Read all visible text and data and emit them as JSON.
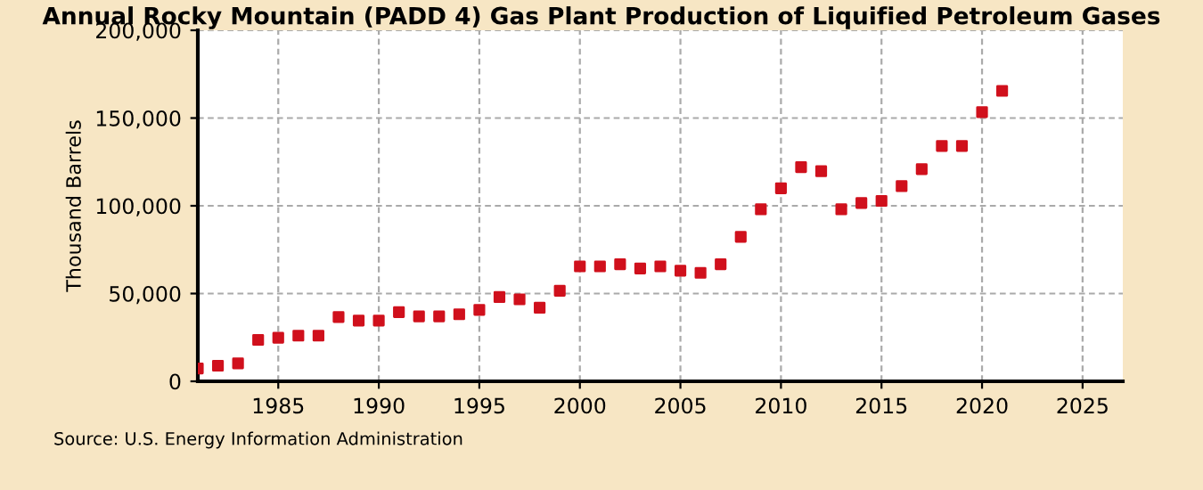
{
  "chart_data": {
    "type": "scatter",
    "title": "Annual Rocky Mountain (PADD 4) Gas Plant Production of Liquified Petroleum Gases",
    "ylabel": "Thousand Barrels",
    "x": [
      1981,
      1982,
      1983,
      1984,
      1985,
      1986,
      1987,
      1988,
      1989,
      1990,
      1991,
      1992,
      1993,
      1994,
      1995,
      1996,
      1997,
      1998,
      1999,
      2000,
      2001,
      2002,
      2003,
      2004,
      2005,
      2006,
      2007,
      2008,
      2009,
      2010,
      2011,
      2012,
      2013,
      2014,
      2015,
      2016,
      2017,
      2018,
      2019,
      2020,
      2021
    ],
    "series": [
      {
        "color": "#d0101c",
        "values": [
          7300,
          8900,
          10200,
          23600,
          24800,
          26000,
          26000,
          36600,
          34600,
          34600,
          39400,
          37000,
          37000,
          38200,
          40700,
          48000,
          46700,
          41900,
          51600,
          65500,
          65500,
          66700,
          64300,
          65500,
          63000,
          61800,
          66700,
          82300,
          98000,
          110000,
          122000,
          119700,
          98000,
          101600,
          102800,
          111200,
          120900,
          134100,
          134100,
          153400,
          165500
        ]
      }
    ],
    "xlim": [
      1981,
      2027
    ],
    "xticks": [
      1985,
      1990,
      1995,
      2000,
      2005,
      2010,
      2015,
      2020,
      2025
    ],
    "ylim": [
      0,
      200000
    ],
    "yticks": [
      {
        "value": 0,
        "label": "0"
      },
      {
        "value": 50000,
        "label": "50,000"
      },
      {
        "value": 100000,
        "label": "100,000"
      },
      {
        "value": 150000,
        "label": "150,000"
      },
      {
        "value": 200000,
        "label": "200,000"
      }
    ],
    "grid": true,
    "marker": "square",
    "annotations": [
      "Source: U.S. Energy Information Administration"
    ]
  }
}
